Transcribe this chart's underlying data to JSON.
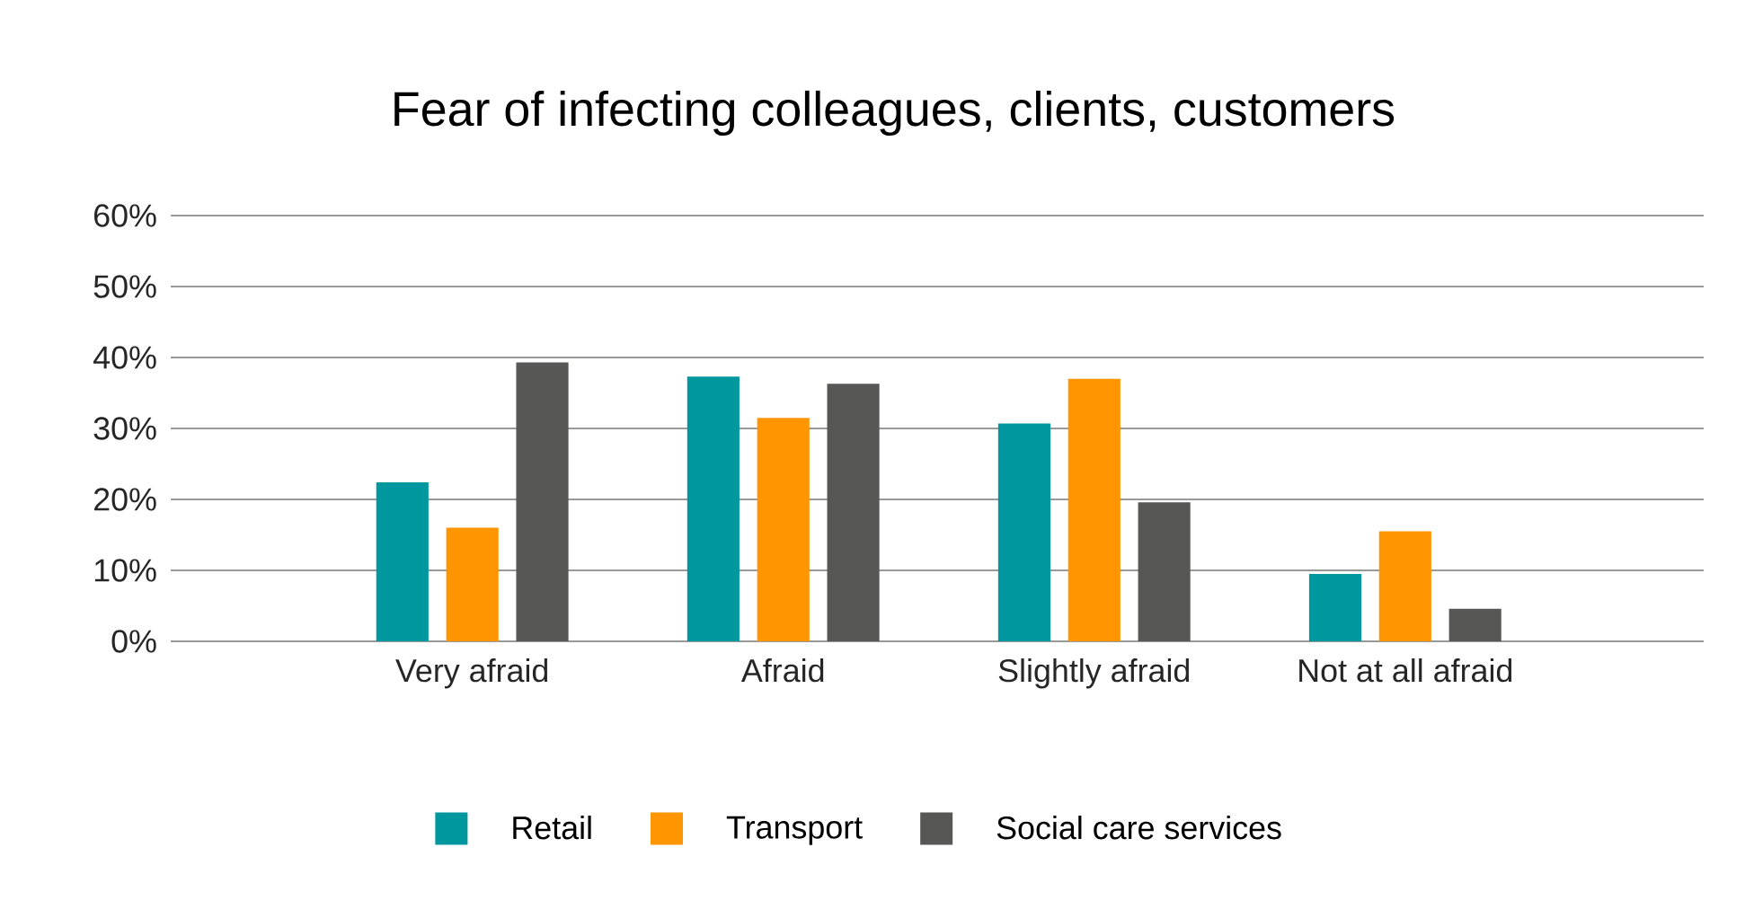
{
  "chart_data": {
    "type": "bar",
    "title": "Fear of infecting colleagues, clients, customers",
    "categories": [
      "Very afraid",
      "Afraid",
      "Slightly afraid",
      "Not at all afraid"
    ],
    "series": [
      {
        "name": "Retail",
        "color": "#00979f",
        "values": [
          22.4,
          37.3,
          30.7,
          9.5
        ]
      },
      {
        "name": "Transport",
        "color": "#ff9500",
        "values": [
          16.0,
          31.5,
          37.0,
          15.5
        ]
      },
      {
        "name": "Social care services",
        "color": "#575755",
        "values": [
          39.3,
          36.3,
          19.6,
          4.6
        ]
      }
    ],
    "ylim": [
      0,
      60
    ],
    "yticks": [
      {
        "value": 0,
        "label": "0%"
      },
      {
        "value": 10,
        "label": "10%"
      },
      {
        "value": 20,
        "label": "20%"
      },
      {
        "value": 30,
        "label": "30%"
      },
      {
        "value": 40,
        "label": "40%"
      },
      {
        "value": 50,
        "label": "50%"
      },
      {
        "value": 60,
        "label": "60%"
      }
    ],
    "grid": "y",
    "legend": "bottom"
  }
}
